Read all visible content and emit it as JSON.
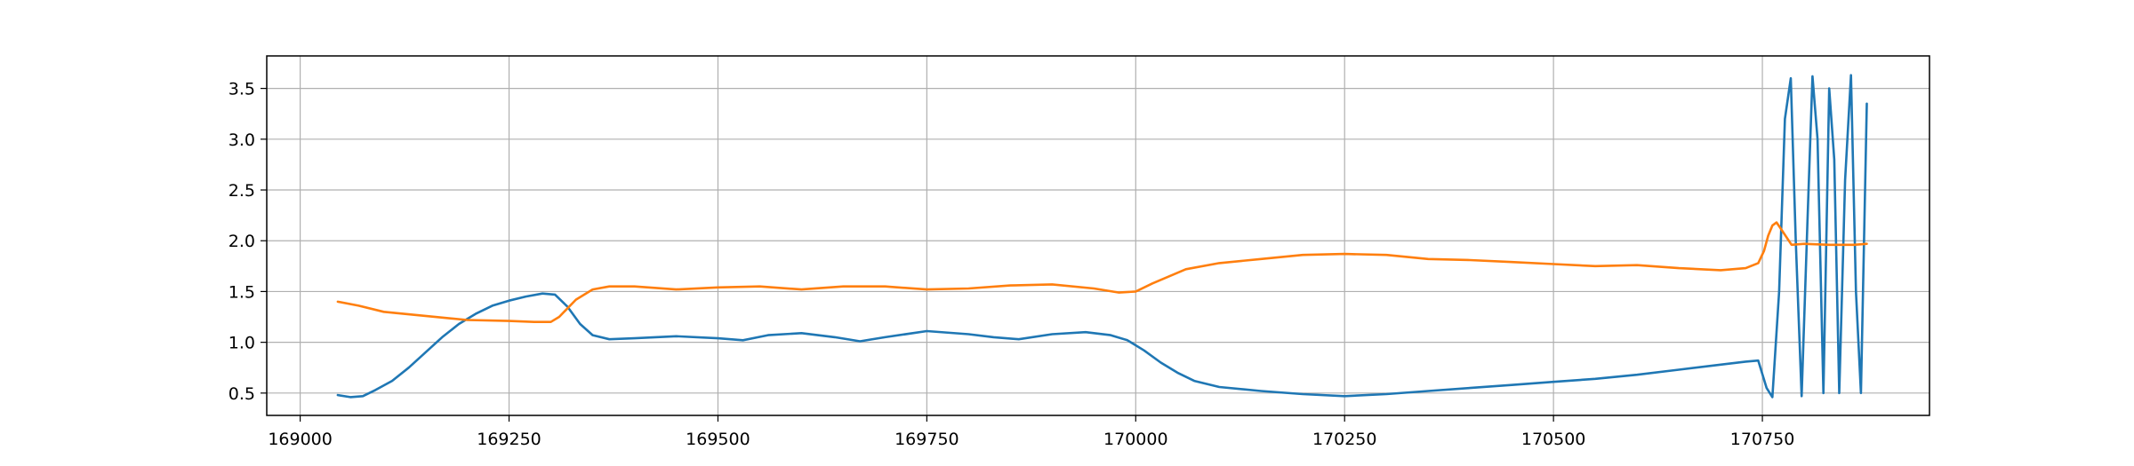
{
  "chart_data": {
    "type": "line",
    "title": "",
    "xlabel": "",
    "ylabel": "",
    "xlim": [
      168960,
      170950
    ],
    "ylim": [
      0.28,
      3.82
    ],
    "grid": true,
    "legend": "none",
    "x_ticks": [
      169000,
      169250,
      169500,
      169750,
      170000,
      170250,
      170500,
      170750
    ],
    "x_tick_labels": [
      "169000",
      "169250",
      "169500",
      "169750",
      "170000",
      "170250",
      "170500",
      "170750"
    ],
    "y_ticks": [
      0.5,
      1.0,
      1.5,
      2.0,
      2.5,
      3.0,
      3.5
    ],
    "y_tick_labels": [
      "0.5",
      "1.0",
      "1.5",
      "2.0",
      "2.5",
      "3.0",
      "3.5"
    ],
    "series": [
      {
        "color": "#1f77b4",
        "x": [
          169045,
          169060,
          169075,
          169090,
          169110,
          169130,
          169150,
          169170,
          169190,
          169210,
          169230,
          169250,
          169270,
          169290,
          169305,
          169320,
          169335,
          169350,
          169370,
          169400,
          169450,
          169500,
          169530,
          169560,
          169600,
          169640,
          169670,
          169700,
          169750,
          169800,
          169830,
          169860,
          169900,
          169940,
          169970,
          169990,
          170010,
          170030,
          170050,
          170070,
          170100,
          170150,
          170200,
          170250,
          170300,
          170350,
          170400,
          170450,
          170500,
          170550,
          170600,
          170650,
          170700,
          170730,
          170745,
          170755,
          170762,
          170770,
          170777,
          170784,
          170790,
          170797,
          170804,
          170810,
          170816,
          170823,
          170830,
          170836,
          170842,
          170849,
          170856,
          170862,
          170868,
          170875
        ],
        "y": [
          0.48,
          0.46,
          0.47,
          0.53,
          0.62,
          0.75,
          0.9,
          1.05,
          1.18,
          1.28,
          1.36,
          1.41,
          1.45,
          1.48,
          1.47,
          1.35,
          1.18,
          1.07,
          1.03,
          1.04,
          1.06,
          1.04,
          1.02,
          1.07,
          1.09,
          1.05,
          1.01,
          1.05,
          1.11,
          1.08,
          1.05,
          1.03,
          1.08,
          1.1,
          1.07,
          1.02,
          0.92,
          0.8,
          0.7,
          0.62,
          0.56,
          0.52,
          0.49,
          0.47,
          0.49,
          0.52,
          0.55,
          0.58,
          0.61,
          0.64,
          0.68,
          0.73,
          0.78,
          0.81,
          0.82,
          0.55,
          0.46,
          1.5,
          3.2,
          3.6,
          2.0,
          0.47,
          2.2,
          3.62,
          3.0,
          0.5,
          3.5,
          2.8,
          0.5,
          2.6,
          3.63,
          1.5,
          0.5,
          3.35
        ]
      },
      {
        "color": "#ff7f0e",
        "x": [
          169045,
          169070,
          169100,
          169150,
          169200,
          169250,
          169280,
          169300,
          169310,
          169330,
          169350,
          169370,
          169400,
          169450,
          169500,
          169550,
          169600,
          169650,
          169700,
          169750,
          169800,
          169850,
          169900,
          169950,
          169980,
          170000,
          170020,
          170040,
          170060,
          170100,
          170150,
          170200,
          170250,
          170300,
          170350,
          170400,
          170450,
          170500,
          170550,
          170600,
          170650,
          170700,
          170730,
          170745,
          170752,
          170757,
          170762,
          170767,
          170772,
          170785,
          170800,
          170830,
          170860,
          170875
        ],
        "y": [
          1.4,
          1.36,
          1.3,
          1.26,
          1.22,
          1.21,
          1.2,
          1.2,
          1.25,
          1.42,
          1.52,
          1.55,
          1.55,
          1.52,
          1.54,
          1.55,
          1.52,
          1.55,
          1.55,
          1.52,
          1.53,
          1.56,
          1.57,
          1.53,
          1.49,
          1.5,
          1.58,
          1.65,
          1.72,
          1.78,
          1.82,
          1.86,
          1.87,
          1.86,
          1.82,
          1.81,
          1.79,
          1.77,
          1.75,
          1.76,
          1.73,
          1.71,
          1.73,
          1.78,
          1.9,
          2.05,
          2.15,
          2.18,
          2.12,
          1.96,
          1.97,
          1.96,
          1.96,
          1.97
        ]
      }
    ]
  }
}
